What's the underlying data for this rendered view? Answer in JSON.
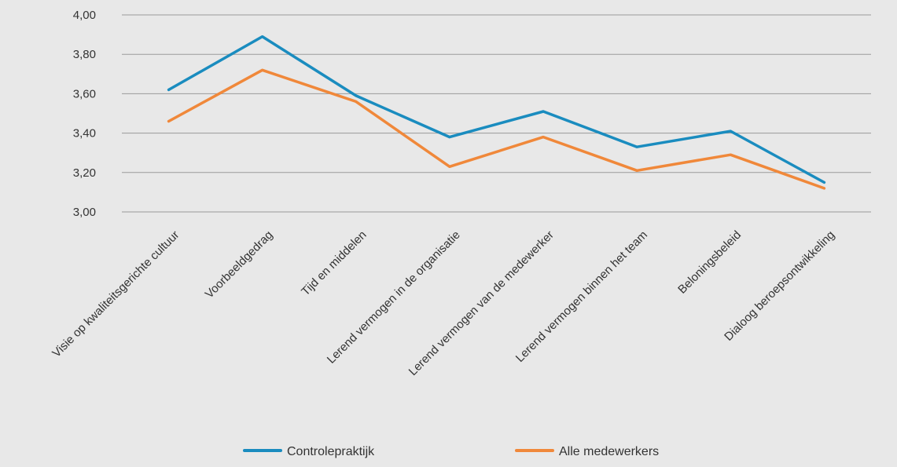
{
  "chart_data": {
    "type": "line",
    "title": "",
    "xlabel": "",
    "ylabel": "",
    "ylim": [
      3.0,
      4.0
    ],
    "yticks": [
      "3,00",
      "3,20",
      "3,40",
      "3,60",
      "3,80",
      "4,00"
    ],
    "ytick_values": [
      3.0,
      3.2,
      3.4,
      3.6,
      3.8,
      4.0
    ],
    "grid": true,
    "legend_position": "bottom",
    "categories": [
      "Visie op kwaliteitsgerichte cultuur",
      "Voorbeeldgedrag",
      "Tijd en middelen",
      "Lerend vermogen in de organisatie",
      "Lerend vermogen van de medewerker",
      "Lerend vermogen binnen het team",
      "Beloningsbeleid",
      "Dialoog beroepsontwikkeling"
    ],
    "series": [
      {
        "name": "Controlepraktijk",
        "color": "#1a8cbf",
        "values": [
          3.62,
          3.89,
          3.59,
          3.38,
          3.51,
          3.33,
          3.41,
          3.15
        ]
      },
      {
        "name": "Alle medewerkers",
        "color": "#f0883a",
        "values": [
          3.46,
          3.72,
          3.56,
          3.23,
          3.38,
          3.21,
          3.29,
          3.12
        ]
      }
    ]
  },
  "colors": {
    "background": "#e8e8e8",
    "grid": "#9a9a9a",
    "text": "#333333"
  }
}
